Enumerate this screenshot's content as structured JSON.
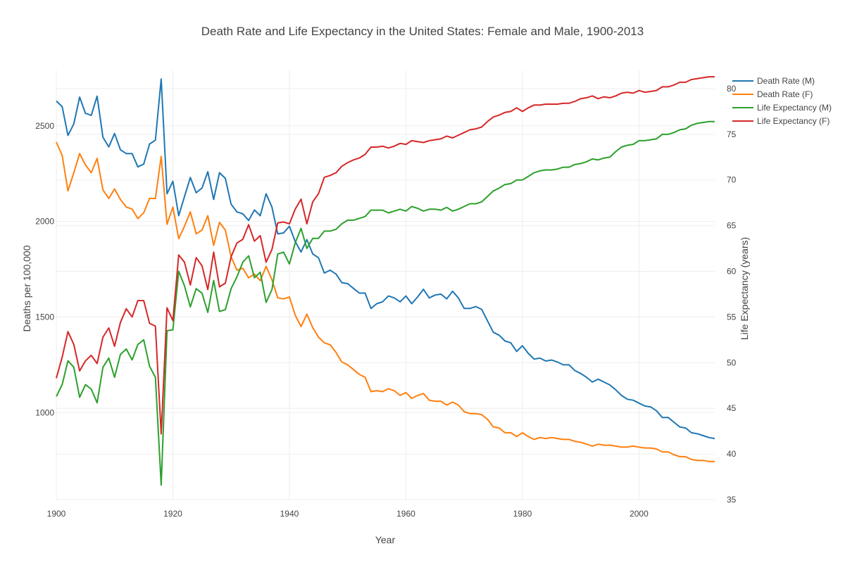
{
  "chart_data": {
    "type": "line",
    "title": "Death Rate and Life Expectancy in the United States: Female and Male, 1900-2013",
    "xlabel": "Year",
    "ylabel": "Deaths per 100,000",
    "y2label": "Life Expectancy (years)",
    "xlim": [
      1900,
      2013
    ],
    "ylim": [
      545,
      2790
    ],
    "y2lim": [
      35,
      82
    ],
    "x_ticks": [
      1900,
      1920,
      1940,
      1960,
      1980,
      2000
    ],
    "y_ticks": [
      1000,
      1500,
      2000,
      2500
    ],
    "y2_ticks": [
      35,
      40,
      45,
      50,
      55,
      60,
      65,
      70,
      75,
      80
    ],
    "grid": true,
    "legend_position": "top-right",
    "x": [
      1900,
      1901,
      1902,
      1903,
      1904,
      1905,
      1906,
      1907,
      1908,
      1909,
      1910,
      1911,
      1912,
      1913,
      1914,
      1915,
      1916,
      1917,
      1918,
      1919,
      1920,
      1921,
      1922,
      1923,
      1924,
      1925,
      1926,
      1927,
      1928,
      1929,
      1930,
      1931,
      1932,
      1933,
      1934,
      1935,
      1936,
      1937,
      1938,
      1939,
      1940,
      1941,
      1942,
      1943,
      1944,
      1945,
      1946,
      1947,
      1948,
      1949,
      1950,
      1951,
      1952,
      1953,
      1954,
      1955,
      1956,
      1957,
      1958,
      1959,
      1960,
      1961,
      1962,
      1963,
      1964,
      1965,
      1966,
      1967,
      1968,
      1969,
      1970,
      1971,
      1972,
      1973,
      1974,
      1975,
      1976,
      1977,
      1978,
      1979,
      1980,
      1981,
      1982,
      1983,
      1984,
      1985,
      1986,
      1987,
      1988,
      1989,
      1990,
      1991,
      1992,
      1993,
      1994,
      1995,
      1996,
      1997,
      1998,
      1999,
      2000,
      2001,
      2002,
      2003,
      2004,
      2005,
      2006,
      2007,
      2008,
      2009,
      2010,
      2011,
      2012,
      2013
    ],
    "series": [
      {
        "name": "Death Rate (M)",
        "axis": "left",
        "color": "#1f77b4",
        "values": [
          2630,
          2600,
          2450,
          2510,
          2650,
          2565,
          2555,
          2655,
          2440,
          2390,
          2460,
          2375,
          2355,
          2355,
          2285,
          2300,
          2405,
          2425,
          2745,
          2145,
          2210,
          2030,
          2130,
          2230,
          2150,
          2175,
          2260,
          2115,
          2255,
          2225,
          2090,
          2050,
          2040,
          2005,
          2060,
          2030,
          2145,
          2075,
          1935,
          1940,
          1975,
          1895,
          1840,
          1905,
          1830,
          1810,
          1730,
          1745,
          1725,
          1680,
          1675,
          1650,
          1625,
          1625,
          1545,
          1570,
          1580,
          1610,
          1600,
          1580,
          1610,
          1570,
          1605,
          1645,
          1600,
          1615,
          1620,
          1595,
          1635,
          1600,
          1545,
          1545,
          1555,
          1540,
          1480,
          1420,
          1405,
          1375,
          1365,
          1320,
          1350,
          1310,
          1280,
          1285,
          1270,
          1275,
          1265,
          1250,
          1250,
          1220,
          1205,
          1185,
          1160,
          1175,
          1160,
          1145,
          1120,
          1090,
          1070,
          1065,
          1050,
          1035,
          1030,
          1010,
          975,
          975,
          950,
          925,
          920,
          895,
          890,
          880,
          870,
          865
        ]
      },
      {
        "name": "Death Rate (F)",
        "axis": "left",
        "color": "#ff7f0e",
        "values": [
          2415,
          2345,
          2160,
          2255,
          2355,
          2295,
          2255,
          2330,
          2165,
          2120,
          2170,
          2115,
          2075,
          2065,
          2015,
          2045,
          2120,
          2120,
          2340,
          1985,
          2075,
          1910,
          1975,
          2050,
          1935,
          1955,
          2030,
          1875,
          1995,
          1955,
          1815,
          1745,
          1755,
          1705,
          1725,
          1690,
          1765,
          1695,
          1600,
          1595,
          1605,
          1510,
          1450,
          1515,
          1445,
          1395,
          1365,
          1355,
          1315,
          1265,
          1250,
          1225,
          1200,
          1185,
          1110,
          1115,
          1110,
          1125,
          1115,
          1090,
          1105,
          1075,
          1090,
          1100,
          1065,
          1060,
          1060,
          1040,
          1055,
          1040,
          1005,
          995,
          995,
          990,
          965,
          925,
          920,
          895,
          895,
          875,
          895,
          875,
          860,
          870,
          865,
          870,
          865,
          860,
          860,
          850,
          845,
          835,
          825,
          835,
          830,
          830,
          825,
          820,
          820,
          825,
          820,
          815,
          815,
          810,
          795,
          795,
          780,
          770,
          770,
          755,
          750,
          750,
          745,
          745
        ]
      },
      {
        "name": "Life Expectancy (M)",
        "axis": "right",
        "color": "#2ca02c",
        "values": [
          46.3,
          47.6,
          50.2,
          49.5,
          46.2,
          47.6,
          47.1,
          45.6,
          49.5,
          50.5,
          48.4,
          50.9,
          51.5,
          50.3,
          52.0,
          52.5,
          49.6,
          48.4,
          36.6,
          53.5,
          53.6,
          60.0,
          58.4,
          56.1,
          58.1,
          57.6,
          55.5,
          59.0,
          55.6,
          55.8,
          58.1,
          59.4,
          61.0,
          61.7,
          59.3,
          59.9,
          56.6,
          58.0,
          61.9,
          62.1,
          60.8,
          63.1,
          64.7,
          62.5,
          63.6,
          63.6,
          64.4,
          64.4,
          64.6,
          65.2,
          65.6,
          65.6,
          65.8,
          66.0,
          66.7,
          66.7,
          66.7,
          66.4,
          66.6,
          66.8,
          66.6,
          67.1,
          66.9,
          66.6,
          66.8,
          66.8,
          66.7,
          67.0,
          66.6,
          66.8,
          67.1,
          67.4,
          67.4,
          67.6,
          68.2,
          68.8,
          69.1,
          69.5,
          69.6,
          70.0,
          70.0,
          70.4,
          70.8,
          71.0,
          71.1,
          71.1,
          71.2,
          71.4,
          71.4,
          71.7,
          71.8,
          72.0,
          72.3,
          72.2,
          72.4,
          72.5,
          73.1,
          73.6,
          73.8,
          73.9,
          74.3,
          74.3,
          74.4,
          74.5,
          75.0,
          75.0,
          75.2,
          75.5,
          75.6,
          76.0,
          76.2,
          76.3,
          76.4,
          76.4
        ]
      },
      {
        "name": "Life Expectancy (F)",
        "axis": "right",
        "color": "#d62728",
        "values": [
          48.3,
          50.6,
          53.4,
          52.0,
          49.1,
          50.2,
          50.8,
          49.9,
          52.8,
          53.8,
          51.8,
          54.4,
          55.9,
          55.0,
          56.8,
          56.8,
          54.3,
          54.0,
          42.2,
          56.0,
          54.6,
          61.8,
          61.0,
          58.5,
          61.5,
          60.6,
          58.0,
          62.1,
          58.3,
          58.7,
          61.6,
          63.1,
          63.5,
          65.1,
          63.3,
          63.9,
          61.0,
          62.4,
          65.3,
          65.4,
          65.2,
          66.8,
          67.9,
          65.2,
          67.6,
          68.5,
          70.3,
          70.5,
          70.8,
          71.5,
          71.9,
          72.2,
          72.4,
          72.8,
          73.6,
          73.6,
          73.7,
          73.5,
          73.7,
          74.0,
          73.9,
          74.3,
          74.2,
          74.1,
          74.3,
          74.4,
          74.5,
          74.8,
          74.6,
          74.9,
          75.2,
          75.5,
          75.6,
          75.8,
          76.4,
          76.9,
          77.1,
          77.4,
          77.5,
          77.9,
          77.5,
          77.9,
          78.2,
          78.2,
          78.3,
          78.3,
          78.3,
          78.4,
          78.4,
          78.6,
          78.9,
          79.0,
          79.2,
          78.9,
          79.1,
          79.0,
          79.2,
          79.5,
          79.6,
          79.5,
          79.8,
          79.6,
          79.7,
          79.8,
          80.2,
          80.2,
          80.4,
          80.7,
          80.7,
          81.0,
          81.1,
          81.2,
          81.3,
          81.3
        ]
      }
    ]
  }
}
